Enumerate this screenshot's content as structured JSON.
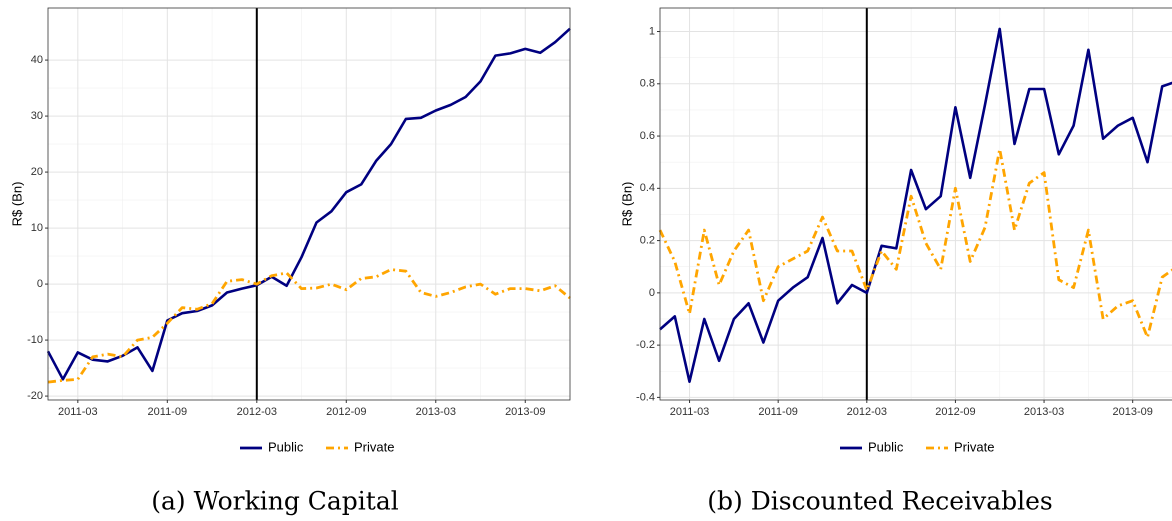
{
  "chart_data": [
    {
      "type": "line",
      "title": "(a) Working Capital",
      "ylabel": "R$ (Bn)",
      "x": [
        "2011-01",
        "2011-02",
        "2011-03",
        "2011-04",
        "2011-05",
        "2011-06",
        "2011-07",
        "2011-08",
        "2011-09",
        "2011-10",
        "2011-11",
        "2011-12",
        "2012-01",
        "2012-02",
        "2012-03",
        "2012-04",
        "2012-05",
        "2012-06",
        "2012-07",
        "2012-08",
        "2012-09",
        "2012-10",
        "2012-11",
        "2012-12",
        "2013-01",
        "2013-02",
        "2013-03",
        "2013-04",
        "2013-05",
        "2013-06",
        "2013-07",
        "2013-08",
        "2013-09",
        "2013-10",
        "2013-11",
        "2013-12"
      ],
      "xlim": [
        "2011-01",
        "2013-12"
      ],
      "xticks": [
        "2011-03",
        "2011-09",
        "2012-03",
        "2012-09",
        "2013-03",
        "2013-09"
      ],
      "ylim": [
        -20.7,
        49.3
      ],
      "yticks": [
        -20,
        -10,
        0,
        10,
        20,
        30,
        40
      ],
      "grid": true,
      "vline": "2012-03",
      "legend": "bottom",
      "series": [
        {
          "name": "Public",
          "color": "#000080",
          "values": [
            -12,
            -17,
            -12.2,
            -13.5,
            -13.8,
            -12.8,
            -11.3,
            -15.5,
            -6.5,
            -5.2,
            -4.8,
            -3.8,
            -1.5,
            -0.8,
            -0.2,
            1.3,
            -0.3,
            4.8,
            11,
            13,
            16.4,
            17.8,
            22,
            25,
            29.5,
            29.7,
            31,
            32,
            33.4,
            36.2,
            40.8,
            41.2,
            42,
            41.3,
            43.2,
            45.6
          ]
        },
        {
          "name": "Private",
          "color": "#FFA500",
          "values": [
            -17.5,
            -17.2,
            -17,
            -13,
            -12.5,
            -13,
            -10,
            -9.5,
            -7,
            -4.2,
            -4.5,
            -3.5,
            0.5,
            0.8,
            0,
            1.5,
            2,
            -0.8,
            -0.7,
            0,
            -1,
            1,
            1.3,
            2.6,
            2.3,
            -1.5,
            -2.2,
            -1.5,
            -0.5,
            0,
            -1.8,
            -0.8,
            -0.8,
            -1.2,
            -0.3,
            -2.5
          ]
        }
      ]
    },
    {
      "type": "line",
      "title": "(b) Discounted Receivables",
      "ylabel": "R$ (Bn)",
      "x": [
        "2011-01",
        "2011-02",
        "2011-03",
        "2011-04",
        "2011-05",
        "2011-06",
        "2011-07",
        "2011-08",
        "2011-09",
        "2011-10",
        "2011-11",
        "2011-12",
        "2012-01",
        "2012-02",
        "2012-03",
        "2012-04",
        "2012-05",
        "2012-06",
        "2012-07",
        "2012-08",
        "2012-09",
        "2012-10",
        "2012-11",
        "2012-12",
        "2013-01",
        "2013-02",
        "2013-03",
        "2013-04",
        "2013-05",
        "2013-06",
        "2013-07",
        "2013-08",
        "2013-09",
        "2013-10",
        "2013-11",
        "2013-12"
      ],
      "xlim": [
        "2011-01",
        "2013-12"
      ],
      "xticks": [
        "2011-03",
        "2011-09",
        "2012-03",
        "2012-09",
        "2013-03",
        "2013-09"
      ],
      "ylim": [
        -0.41,
        1.09
      ],
      "yticks": [
        -0.4,
        -0.2,
        0,
        0.2,
        0.4,
        0.6,
        0.8,
        1
      ],
      "grid": true,
      "vline": "2012-03",
      "legend": "bottom",
      "series": [
        {
          "name": "Public",
          "color": "#000080",
          "values": [
            -0.14,
            -0.09,
            -0.34,
            -0.1,
            -0.26,
            -0.1,
            -0.04,
            -0.19,
            -0.03,
            0.02,
            0.06,
            0.21,
            -0.04,
            0.03,
            0,
            0.18,
            0.17,
            0.47,
            0.32,
            0.37,
            0.71,
            0.44,
            0.72,
            1.01,
            0.57,
            0.78,
            0.78,
            0.53,
            0.64,
            0.93,
            0.59,
            0.64,
            0.67,
            0.5,
            0.79,
            0.81
          ]
        },
        {
          "name": "Private",
          "color": "#FFA500",
          "values": [
            0.24,
            0.12,
            -0.08,
            0.24,
            0.03,
            0.16,
            0.24,
            -0.03,
            0.1,
            0.13,
            0.16,
            0.29,
            0.16,
            0.16,
            0.01,
            0.16,
            0.09,
            0.37,
            0.19,
            0.09,
            0.4,
            0.12,
            0.25,
            0.55,
            0.24,
            0.42,
            0.46,
            0.05,
            0.02,
            0.24,
            -0.1,
            -0.05,
            -0.03,
            -0.17,
            0.06,
            0.1
          ]
        }
      ]
    }
  ]
}
